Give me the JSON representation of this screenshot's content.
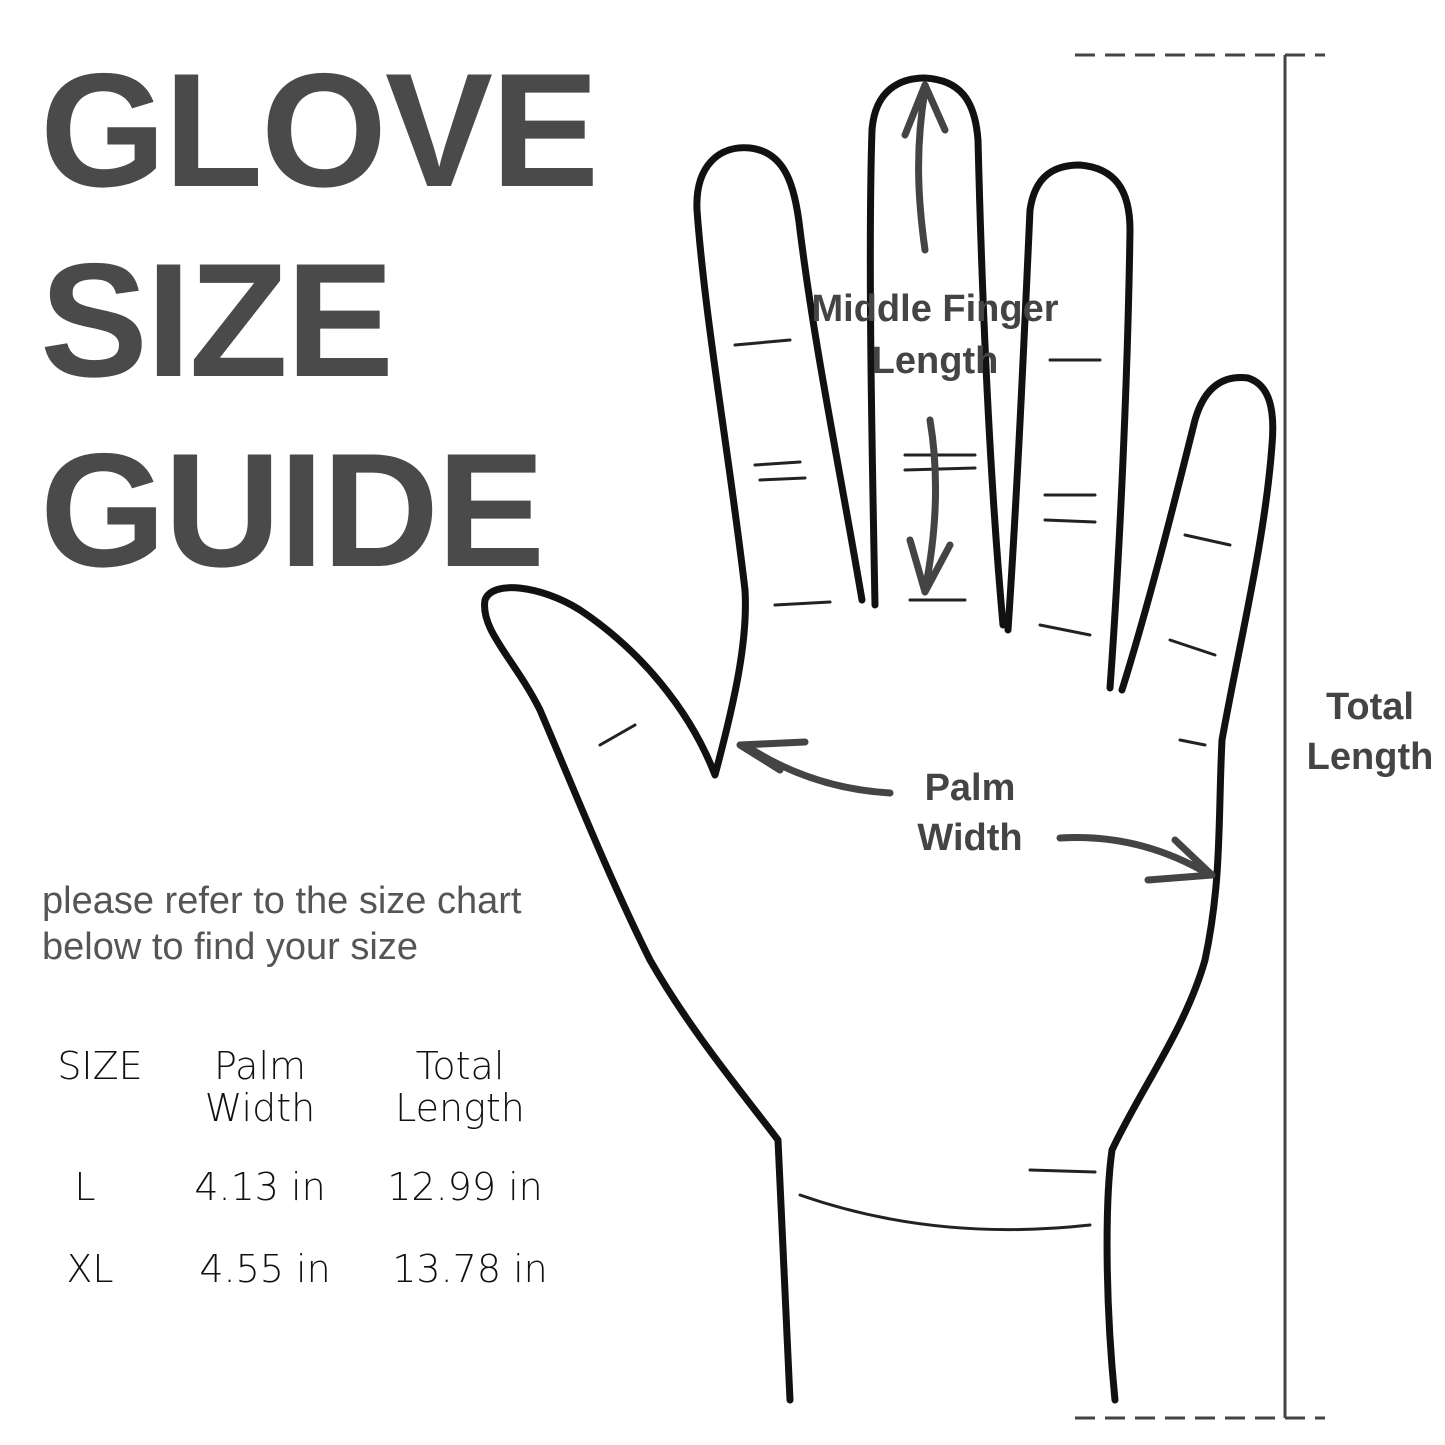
{
  "title": {
    "line1": "GLOVE",
    "line2": "SIZE",
    "line3": "GUIDE"
  },
  "subtitle": {
    "line1": "please refer to the size chart",
    "line2": "below to find your size"
  },
  "size_table": {
    "headers": [
      {
        "line1": "SIZE",
        "line2": ""
      },
      {
        "line1": "Palm",
        "line2": "Width"
      },
      {
        "line1": "Total",
        "line2": "Length"
      }
    ],
    "rows": [
      {
        "size": "L",
        "palm_width": "4.13 in",
        "total_length": "12.99 in"
      },
      {
        "size": "XL",
        "palm_width": "4.55 in",
        "total_length": "13.78 in"
      }
    ]
  },
  "diagram": {
    "middle_finger_label": {
      "line1": "Middle Finger",
      "line2": "Length"
    },
    "palm_width_label": {
      "line1": "Palm",
      "line2": "Width"
    },
    "total_length_label": {
      "line1": "Total",
      "line2": "Length"
    }
  },
  "colors": {
    "title": "#4a4a4a",
    "outline": "#111111",
    "arrow": "#444444"
  }
}
